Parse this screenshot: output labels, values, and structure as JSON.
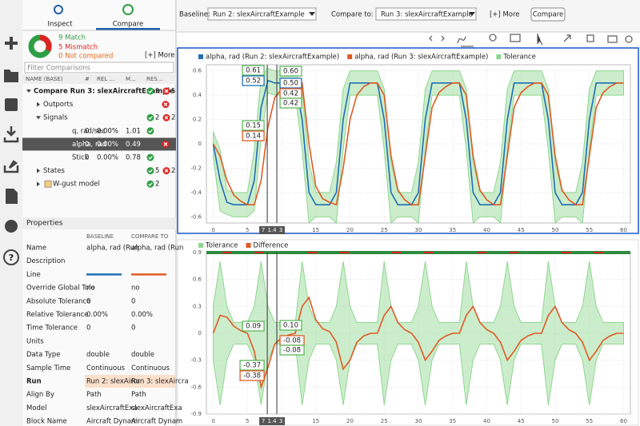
{
  "toolbar": {
    "baseline_label": "Baseline:",
    "baseline": "Run 2: slexAircraftExample",
    "compare_label": "Compare to:",
    "compare": "Run 3: slexAircraftExample",
    "more": "[+] More",
    "button": "Compare"
  },
  "sidebar": {
    "tabs": [
      "Inspect",
      "Compare"
    ],
    "summary": {
      "match": "9 Match",
      "mismatch": "5 Mismatch",
      "not_compared": "0 Not compared",
      "more": "[+] More"
    },
    "filter": "Filter Comparisons",
    "columns": [
      "NAME (BASE)",
      "#",
      "REL ...",
      "M...",
      "RES..."
    ],
    "tree": [
      {
        "label": "Compare Run 3: slexAircraftExample",
        "ok": "9",
        "bad": "5"
      },
      {
        "label": "Outports",
        "result": "fail"
      },
      {
        "label": "Signals",
        "ok": "2",
        "bad": "2"
      },
      {
        "label": "q, rad/sec",
        "abs": "0",
        "rel": "0.00%",
        "max": "1.01",
        "result": "pass"
      },
      {
        "label": "alpha, rad",
        "abs": "0",
        "rel": "0.00%",
        "max": "0.49",
        "result": "fail",
        "selected": true
      },
      {
        "label": "Stick",
        "abs": "0",
        "rel": "0.00%",
        "max": "0.78",
        "result": "pass"
      },
      {
        "label": "States",
        "ok": "5",
        "bad": "2"
      },
      {
        "label": "W-gust model",
        "ok": "2"
      }
    ]
  },
  "properties": {
    "title": "Properties",
    "columns": [
      "BASELINE",
      "COMPARE TO"
    ],
    "rows": [
      {
        "name": "Name",
        "baseline": "alpha, rad (Run",
        "compare": "alpha, rad (Run"
      },
      {
        "name": "Description"
      },
      {
        "name": "Line",
        "line_colors": [
          "#1f6fb4",
          "#e05a24"
        ]
      },
      {
        "name": "Override Global Tole",
        "baseline": "no",
        "compare": "no"
      },
      {
        "name": "Absolute Tolerance",
        "baseline": "0",
        "compare": "0"
      },
      {
        "name": "Relative Tolerance",
        "baseline": "0.00%",
        "compare": "0.00%"
      },
      {
        "name": "Time Tolerance",
        "baseline": "0",
        "compare": "0"
      },
      {
        "name": "Units"
      },
      {
        "name": "Data Type",
        "baseline": "double",
        "compare": "double"
      },
      {
        "name": "Sample Time",
        "baseline": "Continuous",
        "compare": "Continuous"
      },
      {
        "name": "Run",
        "baseline": "Run 2: slexAircr",
        "compare": "Run 3: slexAircra",
        "highlight": true
      },
      {
        "name": "Align By",
        "baseline": "Path",
        "compare": "Path"
      },
      {
        "name": "Model",
        "baseline": "slexAircraftExa",
        "compare": "slexAircraftExa"
      },
      {
        "name": "Block Name",
        "baseline": "Aircraft Dynam",
        "compare": "Aircraft Dynam"
      }
    ]
  },
  "plots": [
    {
      "type": "line",
      "x": [
        0,
        1,
        2,
        3,
        4,
        5,
        6,
        7,
        8,
        9,
        10,
        11,
        12,
        13,
        14,
        15,
        16,
        17,
        18,
        19,
        20,
        21,
        22,
        23,
        24,
        25,
        26,
        27,
        28,
        29,
        30,
        31,
        32,
        33,
        34,
        35,
        36,
        37,
        38,
        39,
        40,
        41,
        42,
        43,
        44,
        45,
        46,
        47,
        48,
        49,
        50,
        51,
        52,
        53,
        54,
        55,
        56,
        57,
        58,
        59,
        60
      ],
      "xlim": [
        -1,
        61
      ],
      "xticks": [
        0,
        5,
        10,
        15,
        20,
        25,
        30,
        35,
        40,
        45,
        50,
        55,
        60
      ],
      "ylim": [
        -0.65,
        0.65
      ],
      "yticks": [
        -0.6,
        -0.4,
        -0.2,
        0,
        0.2,
        0.4,
        0.6
      ],
      "band": {
        "name": "Tolerance",
        "color": "#8fd68f",
        "around": 0,
        "values": [
          0.1,
          0.25,
          0.1,
          0.1,
          0.1,
          0.1,
          0.25,
          0.25,
          0.1,
          0.1,
          0.1,
          0.1,
          0.1,
          0.25,
          0.25,
          0.1,
          0.1,
          0.1,
          0.25,
          0.25,
          0.1,
          0.1,
          0.1,
          0.1,
          0.1,
          0.25,
          0.25,
          0.1,
          0.1,
          0.1,
          0.25,
          0.25,
          0.1,
          0.1,
          0.1,
          0.1,
          0.1,
          0.25,
          0.25,
          0.1,
          0.1,
          0.1,
          0.25,
          0.25,
          0.1,
          0.1,
          0.1,
          0.1,
          0.1,
          0.25,
          0.25,
          0.1,
          0.1,
          0.1,
          0.25,
          0.25,
          0.1,
          0.1,
          0.1,
          0.1,
          0.1
        ]
      },
      "series": [
        {
          "name": "alpha, rad (Run 2: slexAircraftExample)",
          "color": "#1f6fb4",
          "values": [
            0,
            -0.3,
            -0.48,
            -0.5,
            -0.5,
            -0.5,
            -0.3,
            0.3,
            0.52,
            0.5,
            0.5,
            0.5,
            0.5,
            0.2,
            -0.4,
            -0.5,
            -0.5,
            -0.5,
            -0.4,
            0.2,
            0.5,
            0.5,
            0.5,
            0.5,
            0.5,
            0.2,
            -0.4,
            -0.5,
            -0.5,
            -0.5,
            -0.4,
            0.2,
            0.5,
            0.5,
            0.5,
            0.5,
            0.5,
            0.2,
            -0.4,
            -0.5,
            -0.5,
            -0.5,
            -0.4,
            0.2,
            0.5,
            0.5,
            0.5,
            0.5,
            0.5,
            0.2,
            -0.4,
            -0.5,
            -0.5,
            -0.5,
            -0.4,
            0.2,
            0.5,
            0.5,
            0.5,
            0.5,
            0.5
          ]
        },
        {
          "name": "alpha, rad (Run 3: slexAircraftExample)",
          "color": "#e05a24",
          "values": [
            0,
            -0.1,
            -0.3,
            -0.42,
            -0.47,
            -0.5,
            -0.5,
            -0.3,
            0.14,
            0.38,
            0.45,
            0.48,
            0.5,
            0.5,
            0,
            -0.35,
            -0.45,
            -0.48,
            -0.5,
            -0.2,
            0.2,
            0.4,
            0.47,
            0.5,
            0.5,
            0.4,
            -0.1,
            -0.38,
            -0.46,
            -0.5,
            -0.5,
            -0.1,
            0.3,
            0.42,
            0.47,
            0.5,
            0.5,
            0.4,
            -0.1,
            -0.38,
            -0.46,
            -0.5,
            -0.5,
            -0.1,
            0.3,
            0.42,
            0.47,
            0.5,
            0.5,
            0.4,
            -0.1,
            -0.38,
            -0.46,
            -0.5,
            -0.5,
            -0.1,
            0.3,
            0.42,
            0.47,
            0.5,
            0.5
          ]
        }
      ],
      "cursors": [
        7.9,
        9.3
      ],
      "cursor_tags": [
        "7",
        "1.4",
        "3"
      ],
      "readouts": [
        {
          "text": "0.61",
          "color": "#5cb85c",
          "side": "left"
        },
        {
          "text": "0.52",
          "color": "#1f6fb4",
          "side": "left"
        },
        {
          "text": "0.15",
          "color": "#5cb85c",
          "side": "left"
        },
        {
          "text": "0.14",
          "color": "#e05a24",
          "side": "left"
        },
        {
          "text": "0.60",
          "color": "#5cb85c",
          "side": "right"
        },
        {
          "text": "0.50",
          "color": "#1f6fb4",
          "side": "right"
        },
        {
          "text": "0.42",
          "color": "#e05a24",
          "side": "right"
        },
        {
          "text": "0.42",
          "color": "#5cb85c",
          "side": "right"
        }
      ]
    },
    {
      "type": "line",
      "x": [
        0,
        1,
        2,
        3,
        4,
        5,
        6,
        7,
        8,
        9,
        10,
        11,
        12,
        13,
        14,
        15,
        16,
        17,
        18,
        19,
        20,
        21,
        22,
        23,
        24,
        25,
        26,
        27,
        28,
        29,
        30,
        31,
        32,
        33,
        34,
        35,
        36,
        37,
        38,
        39,
        40,
        41,
        42,
        43,
        44,
        45,
        46,
        47,
        48,
        49,
        50,
        51,
        52,
        53,
        54,
        55,
        56,
        57,
        58,
        59,
        60
      ],
      "xlim": [
        -1,
        61
      ],
      "xticks": [
        0,
        5,
        10,
        15,
        20,
        25,
        30,
        35,
        40,
        45,
        50,
        55,
        60
      ],
      "ylim": [
        -0.9,
        0.9
      ],
      "yticks": [
        -0.9,
        -0.6,
        -0.3,
        0,
        0.3,
        0.6,
        0.9
      ],
      "band": {
        "name": "Tolerance",
        "color": "#8fd68f",
        "values": [
          0.3,
          0.8,
          0.3,
          0.12,
          0.12,
          0.12,
          0.3,
          0.8,
          0.3,
          0.12,
          0.12,
          0.12,
          0.12,
          0.8,
          0.3,
          0.12,
          0.12,
          0.12,
          0.3,
          0.8,
          0.3,
          0.12,
          0.12,
          0.12,
          0.12,
          0.8,
          0.3,
          0.12,
          0.12,
          0.12,
          0.3,
          0.8,
          0.3,
          0.12,
          0.12,
          0.12,
          0.12,
          0.8,
          0.3,
          0.12,
          0.12,
          0.12,
          0.3,
          0.8,
          0.3,
          0.12,
          0.12,
          0.12,
          0.12,
          0.8,
          0.3,
          0.12,
          0.12,
          0.12,
          0.3,
          0.8,
          0.3,
          0.12,
          0.12,
          0.12,
          0.12
        ]
      },
      "series": [
        {
          "name": "Difference",
          "color": "#e05a24",
          "values": [
            0,
            0.2,
            0.18,
            0.08,
            0.03,
            0,
            -0.2,
            -0.6,
            -0.38,
            -0.12,
            -0.05,
            -0.02,
            0,
            0.3,
            0.4,
            0.15,
            0.05,
            0.02,
            -0.1,
            -0.4,
            -0.3,
            -0.1,
            -0.03,
            0,
            0,
            0.2,
            0.3,
            0.12,
            0.04,
            0,
            -0.1,
            -0.3,
            -0.2,
            -0.08,
            -0.03,
            0,
            0,
            0.2,
            0.3,
            0.12,
            0.04,
            0,
            -0.1,
            -0.3,
            -0.2,
            -0.08,
            -0.03,
            0,
            0,
            0.2,
            0.3,
            0.12,
            0.04,
            0,
            -0.1,
            -0.3,
            -0.2,
            -0.08,
            -0.03,
            0,
            0
          ]
        }
      ],
      "cursors": [
        7.9,
        9.3
      ],
      "cursor_tags": [
        "7",
        "1.4",
        "3"
      ],
      "readouts": [
        {
          "text": "0.09",
          "color": "#5cb85c",
          "side": "left"
        },
        {
          "text": "-0.37",
          "color": "#5cb85c",
          "side": "left"
        },
        {
          "text": "-0.38",
          "color": "#e05a24",
          "side": "left"
        },
        {
          "text": "0.10",
          "color": "#5cb85c",
          "side": "right"
        },
        {
          "text": "-0.08",
          "color": "#e05a24",
          "side": "right"
        },
        {
          "text": "-0.08",
          "color": "#5cb85c",
          "side": "right"
        }
      ]
    }
  ]
}
